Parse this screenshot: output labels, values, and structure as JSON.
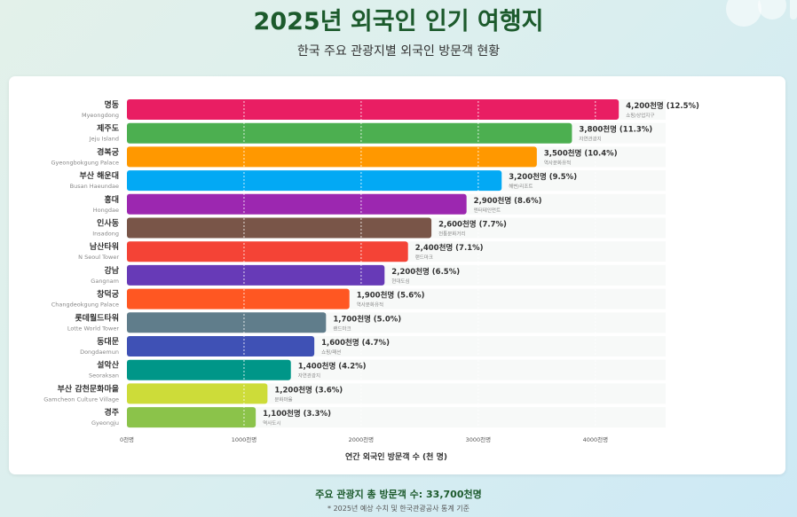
{
  "header": {
    "title": "2025년 외국인 인기 여행지",
    "subtitle": "한국 주요 관광지별 외국인 방문객 현황"
  },
  "footer": {
    "total": "주요 관광지 총 방문객 수: 33,700천명",
    "note": "* 2025년 예상 수치 및 한국관광공사 통계 기준"
  },
  "colors": {
    "background_accent": "#1c5a2c"
  },
  "chart_data": {
    "type": "bar",
    "orientation": "horizontal",
    "title": "2025년 외국인 인기 여행지",
    "xlabel": "연간 외국인 방문객 수 (천 명)",
    "ylabel": "",
    "xlim": [
      0,
      4600
    ],
    "x_ticks": [
      0,
      1000,
      2000,
      3000,
      4000
    ],
    "x_tick_labels": [
      "0천명",
      "1000천명",
      "2000천명",
      "3000천명",
      "4000천명"
    ],
    "grid": true,
    "bars": [
      {
        "name": "명동",
        "english": "Myeongdong",
        "value": 4200,
        "label": "4,200천명 (12.5%)",
        "category": "쇼핑/상업지구",
        "color": "#e91e63"
      },
      {
        "name": "제주도",
        "english": "Jeju Island",
        "value": 3800,
        "label": "3,800천명 (11.3%)",
        "category": "자연관광지",
        "color": "#4caf50"
      },
      {
        "name": "경복궁",
        "english": "Gyeongbokgung Palace",
        "value": 3500,
        "label": "3,500천명 (10.4%)",
        "category": "역사문화유적",
        "color": "#ff9800"
      },
      {
        "name": "부산 해운대",
        "english": "Busan Haeundae",
        "value": 3200,
        "label": "3,200천명 (9.5%)",
        "category": "해변/리조트",
        "color": "#03a9f4"
      },
      {
        "name": "홍대",
        "english": "Hongdae",
        "value": 2900,
        "label": "2,900천명 (8.6%)",
        "category": "엔터테인먼트",
        "color": "#9c27b0"
      },
      {
        "name": "인사동",
        "english": "Insadong",
        "value": 2600,
        "label": "2,600천명 (7.7%)",
        "category": "전통문화거리",
        "color": "#795548"
      },
      {
        "name": "남산타워",
        "english": "N Seoul Tower",
        "value": 2400,
        "label": "2,400천명 (7.1%)",
        "category": "랜드마크",
        "color": "#f44336"
      },
      {
        "name": "강남",
        "english": "Gangnam",
        "value": 2200,
        "label": "2,200천명 (6.5%)",
        "category": "현대도심",
        "color": "#673ab7"
      },
      {
        "name": "창덕궁",
        "english": "Changdeokgung Palace",
        "value": 1900,
        "label": "1,900천명 (5.6%)",
        "category": "역사문화유적",
        "color": "#ff5722"
      },
      {
        "name": "롯데월드타워",
        "english": "Lotte World Tower",
        "value": 1700,
        "label": "1,700천명 (5.0%)",
        "category": "랜드마크",
        "color": "#607d8b"
      },
      {
        "name": "동대문",
        "english": "Dongdaemun",
        "value": 1600,
        "label": "1,600천명 (4.7%)",
        "category": "쇼핑/패션",
        "color": "#3f51b5"
      },
      {
        "name": "설악산",
        "english": "Seoraksan",
        "value": 1400,
        "label": "1,400천명 (4.2%)",
        "category": "자연관광지",
        "color": "#009688"
      },
      {
        "name": "부산 감천문화마을",
        "english": "Gamcheon Culture Village",
        "value": 1200,
        "label": "1,200천명 (3.6%)",
        "category": "문화마을",
        "color": "#cddc39"
      },
      {
        "name": "경주",
        "english": "Gyeongju",
        "value": 1100,
        "label": "1,100천명 (3.3%)",
        "category": "역사도시",
        "color": "#8bc34a"
      }
    ]
  }
}
